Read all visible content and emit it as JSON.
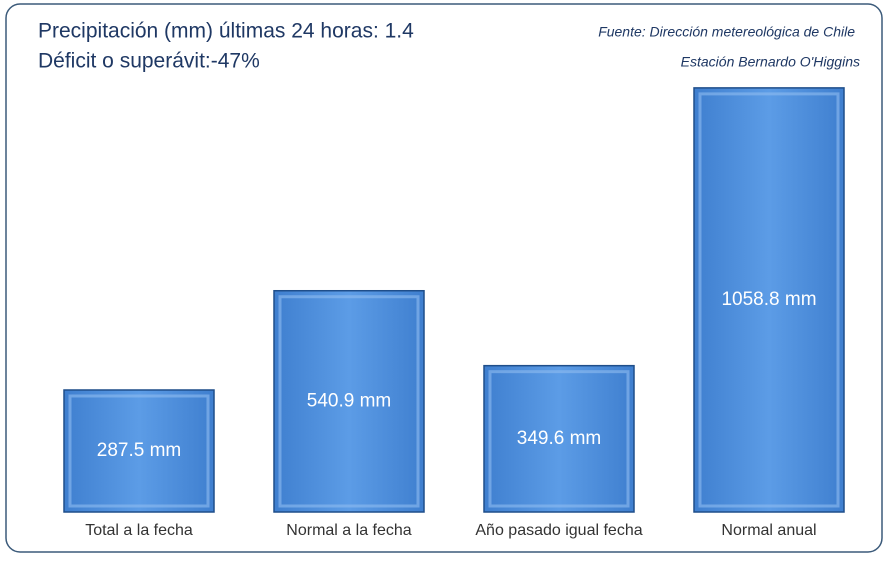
{
  "chart_data": {
    "type": "bar",
    "title": "Precipitación (mm) últimas 24 horas:  1.4",
    "subtitle": "Déficit o superávit:-47%",
    "annotations": [
      "Fuente: Dirección metereológica de Chile",
      "Estación Bernardo O'Higgins"
    ],
    "categories": [
      "Total a la fecha",
      "Normal a la fecha",
      "Año pasado igual fecha",
      "Normal anual"
    ],
    "values": [
      287.5,
      540.9,
      349.6,
      1058.8
    ],
    "value_labels": [
      "287.5 mm",
      "540.9 mm",
      "349.6 mm",
      "1058.8 mm"
    ],
    "color": "#4a8ddb",
    "ylim": [
      -24,
      1130
    ]
  }
}
